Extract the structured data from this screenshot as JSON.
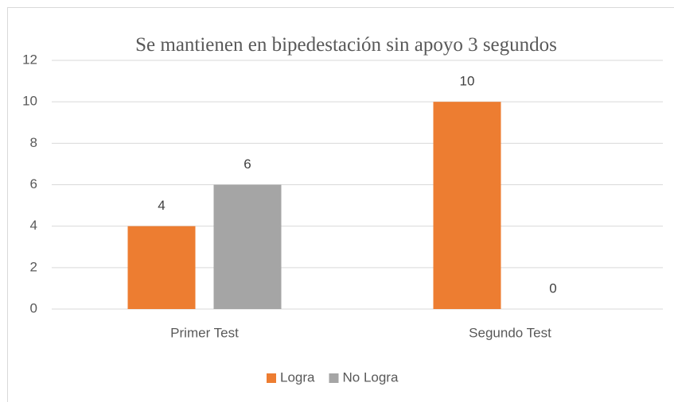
{
  "chart_data": {
    "type": "bar",
    "title": "Se mantienen en bipedestación sin apoyo 3 segundos",
    "categories": [
      "Primer Test",
      "Segundo Test"
    ],
    "series": [
      {
        "name": "Logra",
        "color": "#ed7d31",
        "values": [
          4,
          10
        ]
      },
      {
        "name": "No Logra",
        "color": "#a5a5a5",
        "values": [
          6,
          0
        ]
      }
    ],
    "ylim": [
      0,
      12
    ],
    "yticks": [
      0,
      2,
      4,
      6,
      8,
      10,
      12
    ],
    "grid": true,
    "legend": "bottom"
  }
}
